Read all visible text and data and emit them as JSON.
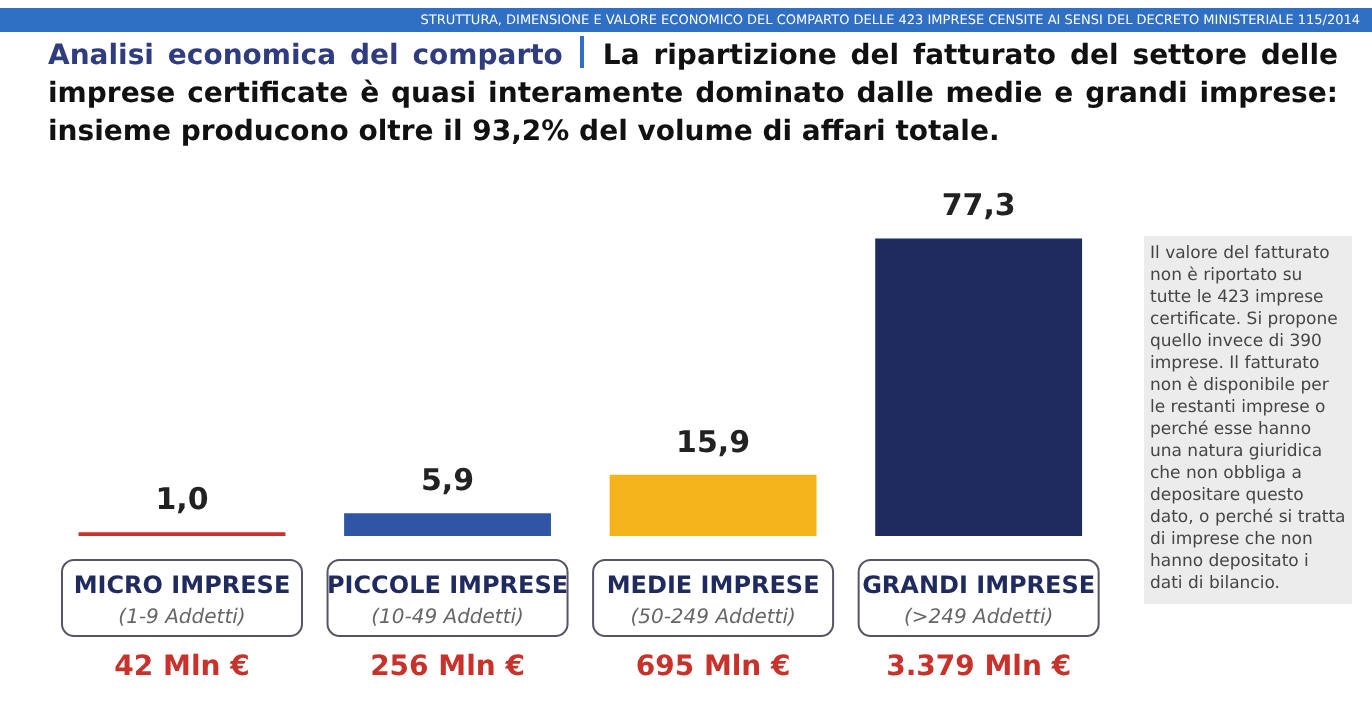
{
  "chart_data": {
    "type": "bar",
    "title": "Analisi economica del comparto",
    "subtitle": "La ripartizione del fatturato del settore delle imprese certificate è quasi interamente dominato dalle medie e grandi imprese: insieme producono oltre il 93,2% del volume di affari totale.",
    "categories": [
      "MICRO IMPRESE",
      "PICCOLE IMPRESE",
      "MEDIE IMPRESE",
      "GRANDI IMPRESE"
    ],
    "values": [
      1.0,
      5.9,
      15.9,
      77.3
    ],
    "colors": [
      "#c8322a",
      "#2f55a4",
      "#f5b419",
      "#1f2b5e"
    ],
    "value_labels": [
      "1,0",
      "5,9",
      "15,9",
      "77,3"
    ],
    "annotations": [
      "STRUTTURA, DIMENSIONE E VALORE ECONOMICO DEL COMPARTO DELLE 423 IMPRESE CENSITE AI SENSI DEL DECRETO MINISTERIALE 115/2014",
      "Il valore del fatturato non è riportato su tutte le 423 imprese certificate. Si propone quello invece di 390 imprese. Il fatturato non è disponibile per le restanti imprese o perché esse hanno una natura giuridica che non obbliga a depositare questo dato, o perché si tratta di imprese che non hanno depositato i dati di bilancio.",
      "(1-9 Addetti)",
      "(10-49 Addetti)",
      "(50-249 Addetti)",
      "(>249 Addetti)",
      "42 Mln €",
      "256 Mln €",
      "695 Mln €",
      "3.379 Mln €"
    ],
    "grid": false,
    "legend": false
  }
}
